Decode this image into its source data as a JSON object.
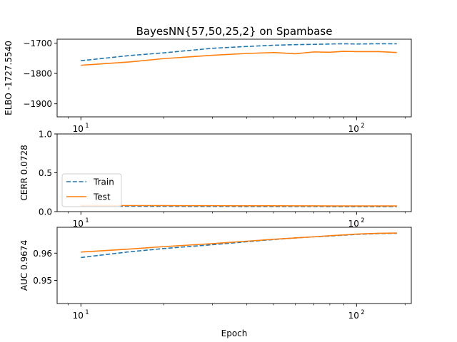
{
  "title": "BayesNN{57,50,25,2} on Spambase",
  "colors": {
    "train": "#1f77b4",
    "test": "#ff7f0e",
    "frame": "#000000",
    "background": "#ffffff"
  },
  "legend": {
    "placement": "center-left of second panel",
    "entries": [
      "Train",
      "Test"
    ]
  },
  "x_axis": {
    "label": "Epoch",
    "scale": "log",
    "range": [
      8.2,
      158
    ],
    "major_ticks": [
      {
        "value": 10,
        "base": "10",
        "exp": "1"
      },
      {
        "value": 100,
        "base": "10",
        "exp": "2"
      }
    ],
    "minor_ticks": [
      9,
      20,
      30,
      40,
      50,
      60,
      70,
      80,
      90,
      150
    ]
  },
  "chart_data": [
    {
      "type": "line",
      "panel": "top",
      "ylabel": "ELBO -1727.5540",
      "ylim": [
        -1943,
        -1687
      ],
      "yticks": [
        -1900,
        -1800,
        -1700
      ],
      "ytick_labels": [
        "−1900",
        "−1800",
        "−1700"
      ],
      "x": [
        10,
        15,
        20,
        30,
        40,
        50,
        60,
        70,
        80,
        90,
        100,
        120,
        140
      ],
      "series": [
        {
          "name": "Train",
          "style": "dashed",
          "values": [
            -1758,
            -1741,
            -1732,
            -1717,
            -1711,
            -1707,
            -1705,
            -1704,
            -1703,
            -1702,
            -1703,
            -1702,
            -1702
          ]
        },
        {
          "name": "Test",
          "style": "solid",
          "values": [
            -1773,
            -1762,
            -1751,
            -1740,
            -1734,
            -1731,
            -1735,
            -1729,
            -1730,
            -1727,
            -1728,
            -1728,
            -1731
          ]
        }
      ]
    },
    {
      "type": "line",
      "panel": "middle",
      "ylabel": "CERR 0.0728",
      "ylim": [
        0,
        1.0
      ],
      "yticks": [
        0,
        0.5,
        1.0
      ],
      "ytick_labels": [
        "0.0",
        "0.5",
        "1.0"
      ],
      "x": [
        10,
        15,
        20,
        30,
        40,
        50,
        60,
        70,
        80,
        90,
        100,
        120,
        140
      ],
      "series": [
        {
          "name": "Train",
          "style": "dashed",
          "values": [
            0.07,
            0.069,
            0.068,
            0.067,
            0.066,
            0.066,
            0.066,
            0.066,
            0.065,
            0.065,
            0.065,
            0.065,
            0.065
          ]
        },
        {
          "name": "Test",
          "style": "solid",
          "values": [
            0.079,
            0.078,
            0.077,
            0.076,
            0.075,
            0.075,
            0.074,
            0.074,
            0.073,
            0.073,
            0.073,
            0.073,
            0.073
          ]
        }
      ]
    },
    {
      "type": "line",
      "panel": "bottom",
      "ylabel": "AUC 0.9674",
      "ylim": [
        0.9415,
        0.9695
      ],
      "yticks": [
        0.95,
        0.96
      ],
      "ytick_labels": [
        "0.95",
        "0.96"
      ],
      "x": [
        10,
        15,
        20,
        30,
        40,
        50,
        60,
        70,
        80,
        90,
        100,
        120,
        140
      ],
      "series": [
        {
          "name": "Train",
          "style": "dashed",
          "values": [
            0.9584,
            0.9605,
            0.9617,
            0.9631,
            0.9642,
            0.965,
            0.9656,
            0.966,
            0.9663,
            0.9666,
            0.9669,
            0.9672,
            0.9673
          ]
        },
        {
          "name": "Test",
          "style": "solid",
          "values": [
            0.9604,
            0.9615,
            0.9624,
            0.9635,
            0.9644,
            0.9651,
            0.9656,
            0.966,
            0.9664,
            0.9667,
            0.967,
            0.9673,
            0.9674
          ]
        }
      ]
    }
  ]
}
